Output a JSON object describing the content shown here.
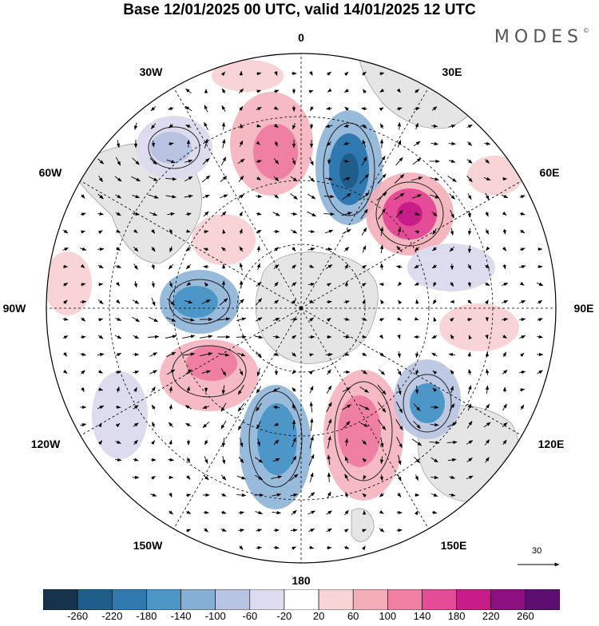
{
  "title": "Base 12/01/2025 00 UTC, valid 14/01/2025 12 UTC",
  "brand": "MODES",
  "brand_mark": "©",
  "longitude_labels": {
    "top": "0",
    "top_right": "30E",
    "right_upper": "60E",
    "right": "90E",
    "right_lower": "120E",
    "bottom_right": "150E",
    "bottom": "180",
    "bottom_left": "150W",
    "left_lower": "120W",
    "left": "90W",
    "left_upper": "60W",
    "top_left": "30W"
  },
  "reference_vector": {
    "label": "30"
  },
  "colorbar": {
    "ticks": [
      "-260",
      "-220",
      "-180",
      "-140",
      "-100",
      "-60",
      "-20",
      "20",
      "60",
      "100",
      "140",
      "180",
      "220",
      "260"
    ],
    "colors": [
      "#16334d",
      "#1f5e8a",
      "#2f79b0",
      "#4d97c8",
      "#86afd6",
      "#b7c3e0",
      "#dcdcee",
      "#ffffff",
      "#f9d4d6",
      "#f3aeb8",
      "#ef80a3",
      "#e54c97",
      "#c61d88",
      "#8c1080",
      "#5c0f70"
    ]
  }
}
